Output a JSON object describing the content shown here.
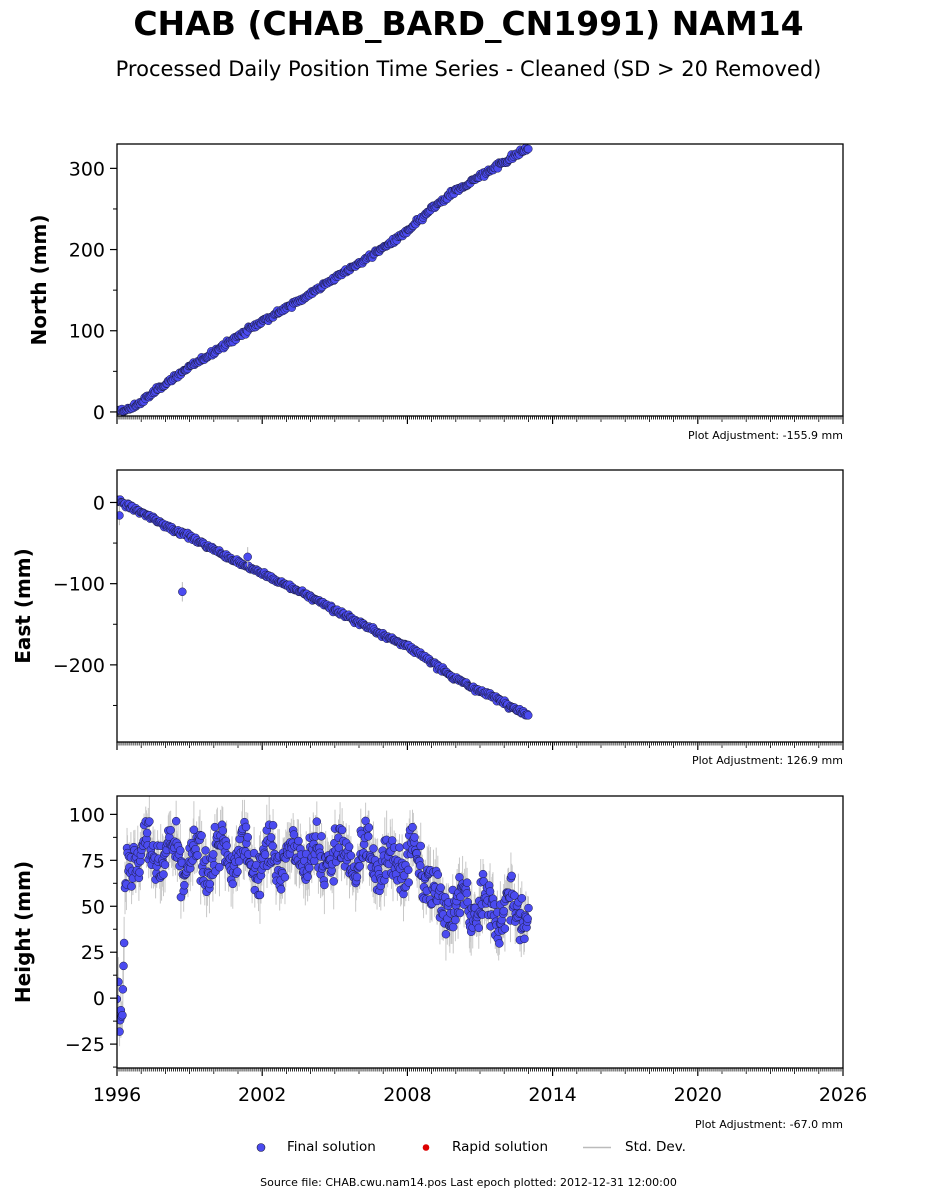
{
  "title": "CHAB (CHAB_BARD_CN1991) NAM14",
  "subtitle": "Processed Daily Position Time Series - Cleaned (SD > 20 Removed)",
  "colors": {
    "final_solution": "#4b4bf0",
    "marker_edge": "#1a1a3a",
    "rapid_solution": "#dd0000",
    "std_dev": "#bbbbbb"
  },
  "legend": {
    "final": "Final solution",
    "rapid": "Rapid solution",
    "std": "Std. Dev."
  },
  "source": "Source file: CHAB.cwu.nam14.pos  Last epoch plotted: 2012-12-31 12:00:00",
  "chart_data": [
    {
      "type": "scatter",
      "ylabel": "North (mm)",
      "adjustment": "Plot Adjustment: -155.9 mm",
      "xlim": [
        1996,
        2026
      ],
      "ylim": [
        -5,
        330
      ],
      "yticks": [
        0,
        100,
        200,
        300
      ],
      "yticklabels": [
        "0",
        "100",
        "200",
        "300"
      ],
      "series": [
        {
          "x": [
            1996.0,
            1996.5,
            1997.0,
            1998.0,
            1999.0,
            2000.0,
            2001.0,
            2002.0,
            2003.0,
            2004.0,
            2005.0,
            2006.0,
            2007.0,
            2008.0,
            2009.0,
            2010.0,
            2011.0,
            2012.0,
            2013.0
          ],
          "y": [
            0,
            3,
            12,
            35,
            55,
            74,
            93,
            112,
            128,
            146,
            165,
            183,
            202,
            222,
            250,
            272,
            290,
            308,
            325
          ]
        }
      ]
    },
    {
      "type": "scatter",
      "ylabel": "East (mm)",
      "adjustment": "Plot Adjustment: 126.9 mm",
      "xlim": [
        1996,
        2026
      ],
      "ylim": [
        -295,
        40
      ],
      "yticks": [
        0,
        -100,
        -200
      ],
      "yticklabels": [
        "0",
        "−100",
        "−200"
      ],
      "outliers": [
        {
          "x": 1998.7,
          "y": -110
        },
        {
          "x": 2001.4,
          "y": -67
        },
        {
          "x": 1996.1,
          "y": -16
        }
      ],
      "series": [
        {
          "x": [
            1996.0,
            1997.0,
            1998.0,
            1999.0,
            2000.0,
            2001.0,
            2002.0,
            2003.0,
            2004.0,
            2005.0,
            2006.0,
            2007.0,
            2008.0,
            2009.0,
            2010.0,
            2011.0,
            2012.0,
            2013.0
          ],
          "y": [
            3,
            -12,
            -28,
            -42,
            -58,
            -73,
            -88,
            -102,
            -116,
            -132,
            -148,
            -163,
            -177,
            -196,
            -218,
            -232,
            -246,
            -263
          ]
        }
      ]
    },
    {
      "type": "scatter",
      "ylabel": "Height (mm)",
      "adjustment": "Plot Adjustment: -67.0 mm",
      "xlim": [
        1996,
        2026
      ],
      "ylim": [
        -38,
        110
      ],
      "yticks": [
        100,
        75,
        50,
        25,
        0,
        -25
      ],
      "yticklabels": [
        "100",
        "75",
        "50",
        "25",
        "0",
        "−25"
      ],
      "xticks": [
        1996,
        2002,
        2008,
        2014,
        2020,
        2026
      ],
      "xticklabels": [
        "1996",
        "2002",
        "2008",
        "2014",
        "2020",
        "2026"
      ],
      "series": [
        {
          "x": [
            1996.0,
            1996.2,
            1996.35,
            1996.6,
            1997.0,
            1998.0,
            1999.0,
            2000.0,
            2001.0,
            2002.0,
            2003.0,
            2004.0,
            2005.0,
            2006.0,
            2007.0,
            2008.0,
            2008.9,
            2009.0,
            2010.0,
            2011.0,
            2012.0,
            2013.0
          ],
          "y": [
            0,
            -15,
            72,
            78,
            80,
            79,
            72,
            78,
            77,
            76,
            77,
            78,
            77,
            76,
            75,
            75,
            70,
            52,
            50,
            50,
            49,
            47
          ]
        }
      ]
    }
  ]
}
